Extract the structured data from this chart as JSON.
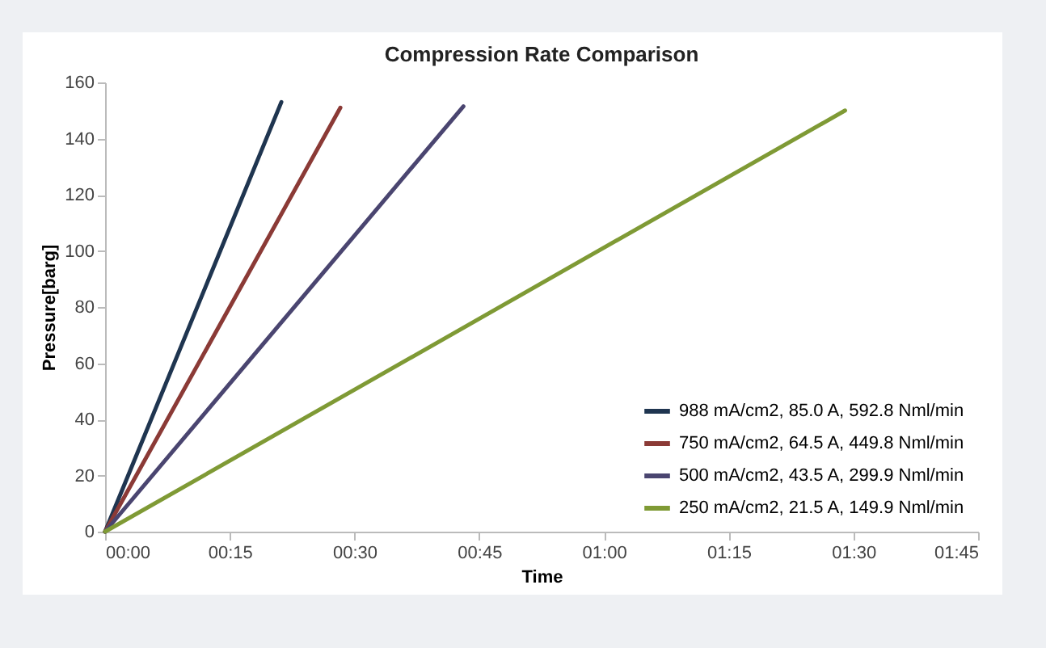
{
  "chart_data": {
    "type": "line",
    "title": "Compression Rate Comparison",
    "xlabel": "Time",
    "ylabel": "Pressure[barg]",
    "xlim": [
      0,
      105
    ],
    "xticks": [
      {
        "value": 0,
        "label": "00:00"
      },
      {
        "value": 15,
        "label": "00:15"
      },
      {
        "value": 30,
        "label": "00:30"
      },
      {
        "value": 45,
        "label": "00:45"
      },
      {
        "value": 60,
        "label": "01:00"
      },
      {
        "value": 75,
        "label": "01:15"
      },
      {
        "value": 90,
        "label": "01:30"
      },
      {
        "value": 105,
        "label": "01:45"
      }
    ],
    "ylim": [
      0,
      160
    ],
    "yticks": [
      0,
      20,
      40,
      60,
      80,
      100,
      120,
      140,
      160
    ],
    "grid": false,
    "legend": "bottom right",
    "series": [
      {
        "name": "988 mA/cm2, 85.0 A, 592.8 Nml/min",
        "color": "#1f3550",
        "x": [
          0,
          21.2
        ],
        "values": [
          0,
          153
        ]
      },
      {
        "name": "750 mA/cm2, 64.5 A, 449.8 Nml/min",
        "color": "#8b3a36",
        "x": [
          0,
          28.3
        ],
        "values": [
          0,
          151
        ]
      },
      {
        "name": "500 mA/cm2, 43.5 A, 299.9 Nml/min",
        "color": "#4a4570",
        "x": [
          0,
          43.1
        ],
        "values": [
          0,
          151.5
        ]
      },
      {
        "name": "250 mA/cm2, 21.5 A, 149.9 Nml/min",
        "color": "#7f9a35",
        "x": [
          0,
          89
        ],
        "values": [
          0,
          150
        ]
      }
    ]
  }
}
